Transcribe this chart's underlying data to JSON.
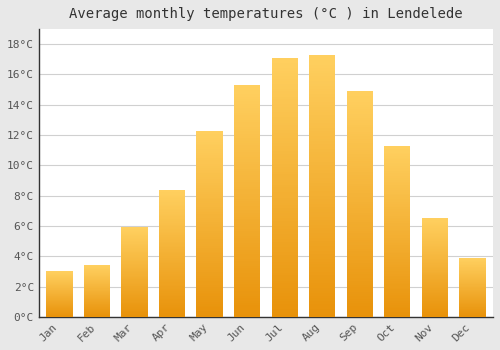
{
  "title": "Average monthly temperatures (°C ) in Lendelede",
  "months": [
    "Jan",
    "Feb",
    "Mar",
    "Apr",
    "May",
    "Jun",
    "Jul",
    "Aug",
    "Sep",
    "Oct",
    "Nov",
    "Dec"
  ],
  "values": [
    3.0,
    3.4,
    5.9,
    8.4,
    12.3,
    15.3,
    17.1,
    17.3,
    14.9,
    11.3,
    6.5,
    3.9
  ],
  "bar_color_dark": "#E8920A",
  "bar_color_light": "#FFD060",
  "ylim": [
    0,
    19
  ],
  "yticks": [
    0,
    2,
    4,
    6,
    8,
    10,
    12,
    14,
    16,
    18
  ],
  "ytick_labels": [
    "0°C",
    "2°C",
    "4°C",
    "6°C",
    "8°C",
    "10°C",
    "12°C",
    "14°C",
    "16°C",
    "18°C"
  ],
  "background_color": "#E8E8E8",
  "plot_bg_color": "#FFFFFF",
  "grid_color": "#D0D0D0",
  "title_fontsize": 10,
  "tick_fontsize": 8,
  "font_family": "monospace",
  "bar_width": 0.7
}
